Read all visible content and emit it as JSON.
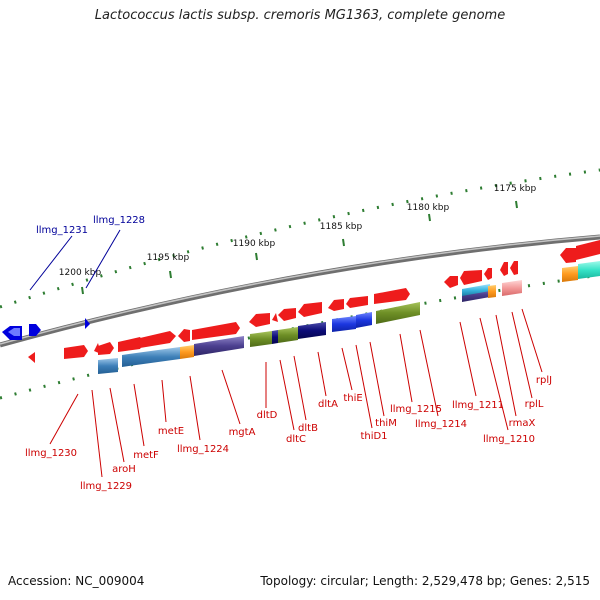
{
  "title": "Lactococcus lactis subsp. cremoris MG1363, complete genome",
  "footer": {
    "accession": "Accession: NC_009004",
    "topology": "Topology: circular; Length: 2,529,478 bp; Genes: 2,515"
  },
  "colors": {
    "backbone": "#8c8c8c",
    "ruler": "#2e7d32",
    "forward_gene": "#ee1c1c",
    "reverse_gene": "#0000dd",
    "label_red": "#cc0000",
    "label_blue": "#000099"
  },
  "scale_labels": [
    "1175 kbp",
    "1180 kbp",
    "1185 kbp",
    "1190 kbp",
    "1195 kbp",
    "1200 kbp"
  ],
  "gene_labels_blue": [
    "llmg_1231",
    "llmg_1228"
  ],
  "gene_labels_red": [
    "llmg_1230",
    "llmg_1229",
    "aroH",
    "metF",
    "metE",
    "llmg_1224",
    "mgtA",
    "dltD",
    "dltC",
    "dltB",
    "dltA",
    "thiE",
    "thiD1",
    "thiM",
    "llmg_1215",
    "llmg_1214",
    "llmg_1211",
    "llmg_1210",
    "rmaX",
    "rplL",
    "rplJ"
  ]
}
